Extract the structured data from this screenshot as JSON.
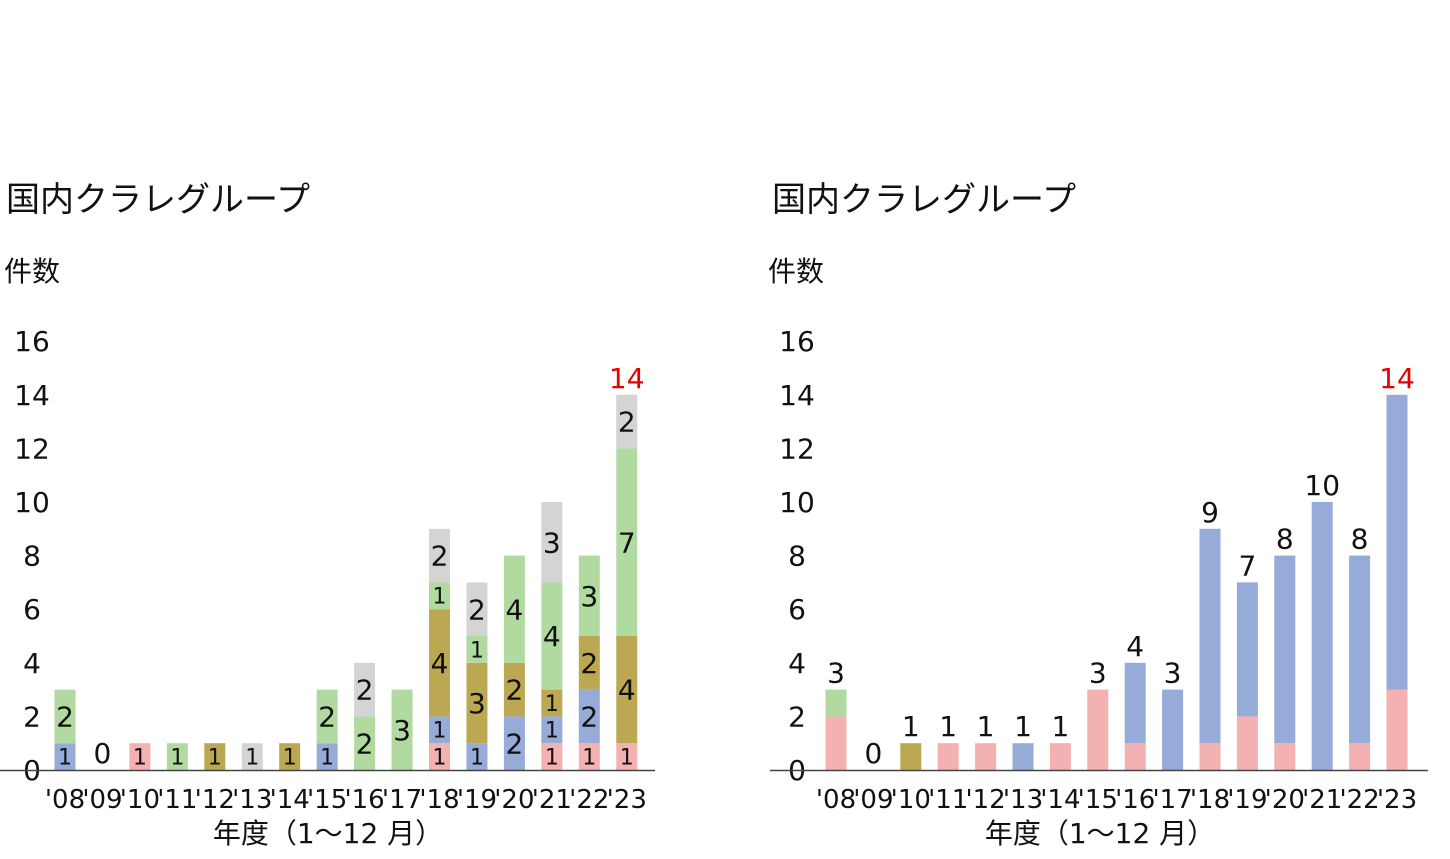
{
  "colors": {
    "pink": "#f4b1b2",
    "blue": "#96abd8",
    "olive": "#bca853",
    "green": "#b1daa0",
    "gray": "#d4d4d4",
    "total_highlight": "#e60000",
    "axis": "#444444"
  },
  "chart_data": [
    {
      "type": "bar",
      "stacked": true,
      "title": "国内クラレグループ",
      "ylabel": "件数",
      "xlabel": "年度（1〜12 月）",
      "ylim": [
        0,
        16
      ],
      "yticks": [
        "0",
        "2",
        "4",
        "6",
        "8",
        "10",
        "12",
        "14",
        "16"
      ],
      "grid": false,
      "categories": [
        "'08",
        "'09",
        "'10",
        "'11",
        "'12",
        "'13",
        "'14",
        "'15",
        "'16",
        "'17",
        "'18",
        "'19",
        "'20",
        "'21",
        "'22",
        "'23"
      ],
      "totals": [
        3,
        0,
        1,
        1,
        1,
        1,
        1,
        3,
        4,
        3,
        9,
        7,
        8,
        10,
        8,
        14
      ],
      "highlight_total_index": 15,
      "segments": [
        [
          {
            "color": "blue",
            "value": 1,
            "label": "1"
          },
          {
            "color": "green",
            "value": 2,
            "label": "2"
          }
        ],
        [],
        [
          {
            "color": "pink",
            "value": 1,
            "label": "1"
          }
        ],
        [
          {
            "color": "green",
            "value": 1,
            "label": "1"
          }
        ],
        [
          {
            "color": "olive",
            "value": 1,
            "label": "1"
          }
        ],
        [
          {
            "color": "gray",
            "value": 1,
            "label": "1"
          }
        ],
        [
          {
            "color": "olive",
            "value": 1,
            "label": "1"
          }
        ],
        [
          {
            "color": "blue",
            "value": 1,
            "label": "1"
          },
          {
            "color": "green",
            "value": 2,
            "label": "2"
          }
        ],
        [
          {
            "color": "green",
            "value": 2,
            "label": "2"
          },
          {
            "color": "gray",
            "value": 2,
            "label": "2"
          }
        ],
        [
          {
            "color": "green",
            "value": 3,
            "label": "3"
          }
        ],
        [
          {
            "color": "pink",
            "value": 1,
            "label": "1"
          },
          {
            "color": "blue",
            "value": 1,
            "label": "1"
          },
          {
            "color": "olive",
            "value": 4,
            "label": "4"
          },
          {
            "color": "green",
            "value": 1,
            "label": "1"
          },
          {
            "color": "gray",
            "value": 2,
            "label": "2"
          }
        ],
        [
          {
            "color": "blue",
            "value": 1,
            "label": "1"
          },
          {
            "color": "olive",
            "value": 3,
            "label": "3"
          },
          {
            "color": "green",
            "value": 1,
            "label": "1"
          },
          {
            "color": "gray",
            "value": 2,
            "label": "2"
          }
        ],
        [
          {
            "color": "blue",
            "value": 2,
            "label": "2"
          },
          {
            "color": "olive",
            "value": 2,
            "label": "2"
          },
          {
            "color": "green",
            "value": 4,
            "label": "4"
          }
        ],
        [
          {
            "color": "pink",
            "value": 1,
            "label": "1"
          },
          {
            "color": "blue",
            "value": 1,
            "label": "1"
          },
          {
            "color": "olive",
            "value": 1,
            "label": "1"
          },
          {
            "color": "green",
            "value": 4,
            "label": "4"
          },
          {
            "color": "gray",
            "value": 3,
            "label": "3"
          }
        ],
        [
          {
            "color": "pink",
            "value": 1,
            "label": "1"
          },
          {
            "color": "blue",
            "value": 2,
            "label": "2"
          },
          {
            "color": "olive",
            "value": 2,
            "label": "2"
          },
          {
            "color": "green",
            "value": 3,
            "label": "3"
          }
        ],
        [
          {
            "color": "pink",
            "value": 1,
            "label": "1"
          },
          {
            "color": "olive",
            "value": 4,
            "label": "4"
          },
          {
            "color": "green",
            "value": 7,
            "label": "7"
          },
          {
            "color": "gray",
            "value": 2,
            "label": "2"
          }
        ]
      ],
      "total_labels_shown": [
        "",
        "0",
        "",
        "",
        "",
        "",
        "",
        "",
        "",
        "",
        "",
        "",
        "",
        "",
        "",
        "14"
      ]
    },
    {
      "type": "bar",
      "stacked": true,
      "title": "国内クラレグループ",
      "ylabel": "件数",
      "xlabel": "年度（1〜12 月）",
      "ylim": [
        0,
        16
      ],
      "yticks": [
        "0",
        "2",
        "4",
        "6",
        "8",
        "10",
        "12",
        "14",
        "16"
      ],
      "grid": false,
      "categories": [
        "'08",
        "'09",
        "'10",
        "'11",
        "'12",
        "'13",
        "'14",
        "'15",
        "'16",
        "'17",
        "'18",
        "'19",
        "'20",
        "'21",
        "'22",
        "'23"
      ],
      "totals": [
        3,
        0,
        1,
        1,
        1,
        1,
        1,
        3,
        4,
        3,
        9,
        7,
        8,
        10,
        8,
        14
      ],
      "highlight_total_index": 15,
      "segments": [
        [
          {
            "color": "pink",
            "value": 2
          },
          {
            "color": "green",
            "value": 1
          }
        ],
        [],
        [
          {
            "color": "olive",
            "value": 1
          }
        ],
        [
          {
            "color": "pink",
            "value": 1
          }
        ],
        [
          {
            "color": "pink",
            "value": 1
          }
        ],
        [
          {
            "color": "blue",
            "value": 1
          }
        ],
        [
          {
            "color": "pink",
            "value": 1
          }
        ],
        [
          {
            "color": "pink",
            "value": 3
          }
        ],
        [
          {
            "color": "pink",
            "value": 1
          },
          {
            "color": "blue",
            "value": 3
          }
        ],
        [
          {
            "color": "blue",
            "value": 3
          }
        ],
        [
          {
            "color": "pink",
            "value": 1
          },
          {
            "color": "blue",
            "value": 8
          }
        ],
        [
          {
            "color": "pink",
            "value": 2
          },
          {
            "color": "blue",
            "value": 5
          }
        ],
        [
          {
            "color": "pink",
            "value": 1
          },
          {
            "color": "blue",
            "value": 7
          }
        ],
        [
          {
            "color": "blue",
            "value": 10
          }
        ],
        [
          {
            "color": "pink",
            "value": 1
          },
          {
            "color": "blue",
            "value": 7
          }
        ],
        [
          {
            "color": "pink",
            "value": 3
          },
          {
            "color": "blue",
            "value": 11
          }
        ]
      ],
      "total_labels_shown": [
        "3",
        "0",
        "1",
        "1",
        "1",
        "1",
        "1",
        "3",
        "4",
        "3",
        "9",
        "7",
        "8",
        "10",
        "8",
        "14"
      ]
    }
  ]
}
